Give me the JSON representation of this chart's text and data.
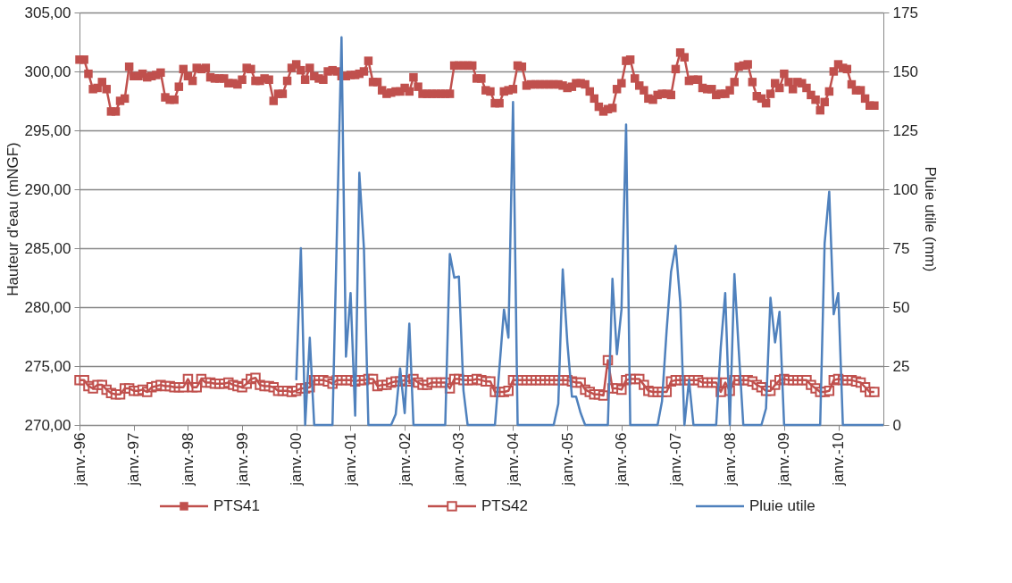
{
  "chart_data": {
    "type": "line",
    "ylabel": "Hauteur d'eau (mNGF)",
    "y2label": "Pluie utile (mm)",
    "grid": "y",
    "legend": "bottom",
    "xlim": [
      "1996-01",
      "2010-11"
    ],
    "xticks": [
      {
        "value": "1996-01",
        "label": "janv.-96"
      },
      {
        "value": "1997-01",
        "label": "janv.-97"
      },
      {
        "value": "1998-01",
        "label": "janv.-98"
      },
      {
        "value": "1999-01",
        "label": "janv.-99"
      },
      {
        "value": "2000-01",
        "label": "janv.-00"
      },
      {
        "value": "2001-01",
        "label": "janv.-01"
      },
      {
        "value": "2002-01",
        "label": "janv.-02"
      },
      {
        "value": "2003-01",
        "label": "janv.-03"
      },
      {
        "value": "2004-01",
        "label": "janv.-04"
      },
      {
        "value": "2005-01",
        "label": "janv.-05"
      },
      {
        "value": "2006-01",
        "label": "janv.-06"
      },
      {
        "value": "2007-01",
        "label": "janv.-07"
      },
      {
        "value": "2008-01",
        "label": "janv.-08"
      },
      {
        "value": "2009-01",
        "label": "janv.-09"
      },
      {
        "value": "2010-01",
        "label": "janv.-10"
      }
    ],
    "ylim": [
      270,
      305
    ],
    "yticks": [
      {
        "value": 270,
        "label": "270,00"
      },
      {
        "value": 275,
        "label": "275,00"
      },
      {
        "value": 280,
        "label": "280,00"
      },
      {
        "value": 285,
        "label": "285,00"
      },
      {
        "value": 290,
        "label": "290,00"
      },
      {
        "value": 295,
        "label": "295,00"
      },
      {
        "value": 300,
        "label": "300,00"
      },
      {
        "value": 305,
        "label": "305,00"
      }
    ],
    "y2lim": [
      0,
      175
    ],
    "y2ticks": [
      0,
      25,
      50,
      75,
      100,
      125,
      150,
      175
    ],
    "x": [
      "1996-01",
      "1996-02",
      "1996-03",
      "1996-04",
      "1996-05",
      "1996-06",
      "1996-07",
      "1996-08",
      "1996-09",
      "1996-10",
      "1996-11",
      "1996-12",
      "1997-01",
      "1997-02",
      "1997-03",
      "1997-04",
      "1997-05",
      "1997-06",
      "1997-07",
      "1997-08",
      "1997-09",
      "1997-10",
      "1997-11",
      "1997-12",
      "1998-01",
      "1998-02",
      "1998-03",
      "1998-04",
      "1998-05",
      "1998-06",
      "1998-07",
      "1998-08",
      "1998-09",
      "1998-10",
      "1998-11",
      "1998-12",
      "1999-01",
      "1999-02",
      "1999-03",
      "1999-04",
      "1999-05",
      "1999-06",
      "1999-07",
      "1999-08",
      "1999-09",
      "1999-10",
      "1999-11",
      "1999-12",
      "2000-01",
      "2000-02",
      "2000-03",
      "2000-04",
      "2000-05",
      "2000-06",
      "2000-07",
      "2000-08",
      "2000-09",
      "2000-10",
      "2000-11",
      "2000-12",
      "2001-01",
      "2001-02",
      "2001-03",
      "2001-04",
      "2001-05",
      "2001-06",
      "2001-07",
      "2001-08",
      "2001-09",
      "2001-10",
      "2001-11",
      "2001-12",
      "2002-01",
      "2002-02",
      "2002-03",
      "2002-04",
      "2002-05",
      "2002-06",
      "2002-07",
      "2002-08",
      "2002-09",
      "2002-10",
      "2002-11",
      "2002-12",
      "2003-01",
      "2003-02",
      "2003-03",
      "2003-04",
      "2003-05",
      "2003-06",
      "2003-07",
      "2003-08",
      "2003-09",
      "2003-10",
      "2003-11",
      "2003-12",
      "2004-01",
      "2004-02",
      "2004-03",
      "2004-04",
      "2004-05",
      "2004-06",
      "2004-07",
      "2004-08",
      "2004-09",
      "2004-10",
      "2004-11",
      "2004-12",
      "2005-01",
      "2005-02",
      "2005-03",
      "2005-04",
      "2005-05",
      "2005-06",
      "2005-07",
      "2005-08",
      "2005-09",
      "2005-10",
      "2005-11",
      "2005-12",
      "2006-01",
      "2006-02",
      "2006-03",
      "2006-04",
      "2006-05",
      "2006-06",
      "2006-07",
      "2006-08",
      "2006-09",
      "2006-10",
      "2006-11",
      "2006-12",
      "2007-01",
      "2007-02",
      "2007-03",
      "2007-04",
      "2007-05",
      "2007-06",
      "2007-07",
      "2007-08",
      "2007-09",
      "2007-10",
      "2007-11",
      "2007-12",
      "2008-01",
      "2008-02",
      "2008-03",
      "2008-04",
      "2008-05",
      "2008-06",
      "2008-07",
      "2008-08",
      "2008-09",
      "2008-10",
      "2008-11",
      "2008-12",
      "2009-01",
      "2009-02",
      "2009-03",
      "2009-04",
      "2009-05",
      "2009-06",
      "2009-07",
      "2009-08",
      "2009-09",
      "2009-10",
      "2009-11",
      "2009-12",
      "2010-01",
      "2010-02",
      "2010-03",
      "2010-04",
      "2010-05",
      "2010-06",
      "2010-07",
      "2010-08",
      "2010-09"
    ],
    "series": [
      {
        "name": "PTS41",
        "color": "#c0504d",
        "marker": "square",
        "values": [
          301.0,
          301.0,
          299.8,
          298.5,
          298.6,
          299.1,
          298.5,
          296.6,
          296.6,
          297.5,
          297.7,
          300.4,
          299.6,
          299.6,
          299.8,
          299.5,
          299.6,
          299.7,
          299.9,
          297.8,
          297.6,
          297.6,
          298.7,
          300.2,
          299.6,
          299.2,
          300.3,
          300.2,
          300.3,
          299.5,
          299.4,
          299.4,
          299.4,
          299.0,
          299.0,
          298.9,
          299.3,
          300.3,
          300.2,
          299.2,
          299.2,
          299.4,
          299.3,
          297.5,
          298.1,
          298.1,
          299.2,
          300.3,
          300.6,
          300.1,
          299.3,
          300.3,
          299.6,
          299.4,
          299.3,
          300.0,
          300.1,
          300.0,
          299.6,
          299.6,
          299.7,
          299.7,
          299.8,
          300.0,
          300.9,
          299.1,
          299.1,
          298.4,
          298.1,
          298.2,
          298.3,
          298.3,
          298.6,
          298.3,
          299.5,
          298.7,
          298.1,
          298.1,
          298.1,
          298.1,
          298.1,
          298.1,
          298.1,
          300.5,
          300.5,
          300.5,
          300.5,
          300.5,
          299.4,
          299.4,
          298.4,
          298.3,
          297.3,
          297.3,
          298.3,
          298.4,
          298.5,
          300.5,
          300.4,
          298.8,
          298.9,
          298.9,
          298.9,
          298.9,
          298.9,
          298.9,
          298.9,
          298.8,
          298.6,
          298.7,
          299.0,
          299.0,
          298.9,
          298.3,
          297.7,
          297.0,
          296.6,
          296.8,
          296.9,
          298.5,
          299.0,
          300.9,
          301.0,
          299.4,
          298.8,
          298.4,
          297.7,
          297.6,
          298.0,
          298.1,
          298.1,
          298.0,
          300.2,
          301.6,
          301.2,
          299.2,
          299.3,
          299.3,
          298.6,
          298.5,
          298.5,
          298.0,
          298.1,
          298.1,
          298.4,
          299.1,
          300.4,
          300.5,
          300.6,
          299.1,
          297.9,
          297.7,
          297.3,
          298.1,
          299.0,
          298.6,
          299.8,
          299.1,
          298.5,
          299.1,
          299.0,
          298.6,
          298.0,
          297.6,
          296.7,
          297.4,
          298.3,
          300.0,
          300.6,
          300.3,
          300.2,
          298.9,
          298.4,
          298.4,
          297.7,
          297.1,
          297.1
        ]
      },
      {
        "name": "PTS42",
        "color": "#c0504d",
        "marker": "square",
        "values": [
          273.8,
          273.8,
          273.3,
          273.1,
          273.4,
          273.4,
          273.0,
          272.7,
          272.6,
          272.6,
          273.1,
          273.1,
          272.9,
          272.9,
          273.0,
          272.8,
          273.2,
          273.3,
          273.4,
          273.3,
          273.3,
          273.2,
          273.2,
          273.2,
          273.9,
          273.2,
          273.2,
          273.9,
          273.6,
          273.6,
          273.5,
          273.5,
          273.5,
          273.6,
          273.4,
          273.3,
          273.2,
          273.5,
          273.9,
          274.0,
          273.4,
          273.3,
          273.3,
          273.2,
          272.9,
          272.9,
          272.9,
          272.8,
          272.9,
          273.1,
          273.1,
          273.2,
          273.8,
          273.8,
          273.8,
          273.7,
          273.5,
          273.8,
          273.8,
          273.8,
          273.8,
          273.7,
          273.8,
          273.8,
          273.9,
          273.9,
          273.3,
          273.4,
          273.4,
          273.6,
          273.7,
          273.7,
          273.8,
          273.7,
          273.9,
          273.6,
          273.4,
          273.4,
          273.6,
          273.6,
          273.6,
          273.6,
          273.1,
          273.9,
          273.9,
          273.8,
          273.8,
          273.8,
          273.9,
          273.8,
          273.7,
          273.7,
          272.8,
          272.8,
          272.8,
          272.9,
          273.8,
          273.8,
          273.8,
          273.8,
          273.8,
          273.8,
          273.8,
          273.8,
          273.8,
          273.8,
          273.8,
          273.8,
          273.8,
          273.7,
          273.6,
          273.6,
          273.0,
          272.8,
          272.6,
          272.6,
          272.5,
          275.5,
          273.1,
          273.1,
          273.0,
          273.8,
          273.9,
          273.9,
          273.9,
          273.4,
          272.9,
          272.8,
          272.8,
          272.8,
          272.8,
          273.7,
          273.8,
          273.8,
          273.8,
          273.8,
          273.8,
          273.8,
          273.6,
          273.6,
          273.6,
          273.6,
          272.8,
          273.6,
          272.9,
          273.8,
          273.8,
          273.8,
          273.8,
          273.7,
          273.4,
          273.2,
          272.9,
          272.9,
          273.4,
          273.8,
          273.9,
          273.8,
          273.8,
          273.8,
          273.8,
          273.8,
          273.4,
          273.1,
          272.8,
          272.8,
          272.9,
          273.8,
          273.9,
          273.8,
          273.8,
          273.8,
          273.7,
          273.6,
          273.2,
          272.8,
          272.8
        ]
      },
      {
        "name": "Pluie utile",
        "color": "#4f81bd",
        "marker": "none",
        "axis": "y2",
        "x": [
          "2000-01",
          "2000-02",
          "2000-03",
          "2000-04",
          "2000-05",
          "2000-06",
          "2000-07",
          "2000-08",
          "2000-09",
          "2000-10",
          "2000-11",
          "2000-12",
          "2001-01",
          "2001-02",
          "2001-03",
          "2001-04",
          "2001-05",
          "2001-06",
          "2001-07",
          "2001-08",
          "2001-09",
          "2001-10",
          "2001-11",
          "2001-12",
          "2002-01",
          "2002-02",
          "2002-03",
          "2002-04",
          "2002-05",
          "2002-06",
          "2002-07",
          "2002-08",
          "2002-09",
          "2002-10",
          "2002-11",
          "2002-12",
          "2003-01",
          "2003-02",
          "2003-03",
          "2003-04",
          "2003-05",
          "2003-06",
          "2003-07",
          "2003-08",
          "2003-09",
          "2003-10",
          "2003-11",
          "2003-12",
          "2004-01",
          "2004-02",
          "2004-03",
          "2004-04",
          "2004-05",
          "2004-06",
          "2004-07",
          "2004-08",
          "2004-09",
          "2004-10",
          "2004-11",
          "2004-12",
          "2005-01",
          "2005-02",
          "2005-03",
          "2005-04",
          "2005-05",
          "2005-06",
          "2005-07",
          "2005-08",
          "2005-09",
          "2005-10",
          "2005-11",
          "2005-12",
          "2006-01",
          "2006-02",
          "2006-03",
          "2006-04",
          "2006-05",
          "2006-06",
          "2006-07",
          "2006-08",
          "2006-09",
          "2006-10",
          "2006-11",
          "2006-12",
          "2007-01",
          "2007-02",
          "2007-03",
          "2007-04",
          "2007-05",
          "2007-06",
          "2007-07",
          "2007-08",
          "2007-09",
          "2007-10",
          "2007-11",
          "2007-12",
          "2008-01",
          "2008-02",
          "2008-03",
          "2008-04",
          "2008-05",
          "2008-06",
          "2008-07",
          "2008-08",
          "2008-09",
          "2008-10",
          "2008-11",
          "2008-12",
          "2009-01",
          "2009-02",
          "2009-03",
          "2009-04",
          "2009-05",
          "2009-06",
          "2009-07",
          "2009-08",
          "2009-09",
          "2009-10",
          "2009-11",
          "2009-12",
          "2010-01",
          "2010-02",
          "2010-03",
          "2010-04",
          "2010-05",
          "2010-06",
          "2010-07",
          "2010-08",
          "2010-09",
          "2010-10",
          "2010-11"
        ],
        "values": [
          19,
          75,
          0,
          37,
          0,
          0,
          0,
          0,
          0,
          82,
          164.5,
          29,
          56,
          4,
          107,
          75,
          0,
          0,
          0,
          0,
          0,
          0,
          4.5,
          24,
          5,
          43,
          0,
          0,
          0,
          0,
          0,
          0,
          0,
          0,
          72.5,
          62.5,
          63,
          14.5,
          0,
          0,
          0,
          0,
          0,
          0,
          0,
          24,
          49,
          37,
          137,
          0,
          0,
          0,
          0,
          0,
          0,
          0,
          0,
          0,
          9,
          66,
          35,
          12,
          12,
          5,
          0,
          0,
          0,
          0,
          0,
          0,
          62,
          30,
          49,
          127.5,
          0,
          0,
          0,
          0,
          0,
          0,
          0,
          10,
          40,
          65,
          76,
          52,
          0,
          19,
          0,
          0,
          0,
          0,
          0,
          0,
          33,
          56,
          0,
          64,
          32,
          0,
          0,
          0,
          0,
          0,
          7,
          54,
          35,
          48,
          0,
          0,
          0,
          0,
          0,
          0,
          0,
          0,
          0,
          77,
          99,
          47,
          56,
          0,
          0,
          0,
          0,
          0,
          0,
          0,
          0,
          0,
          0
        ]
      }
    ]
  }
}
